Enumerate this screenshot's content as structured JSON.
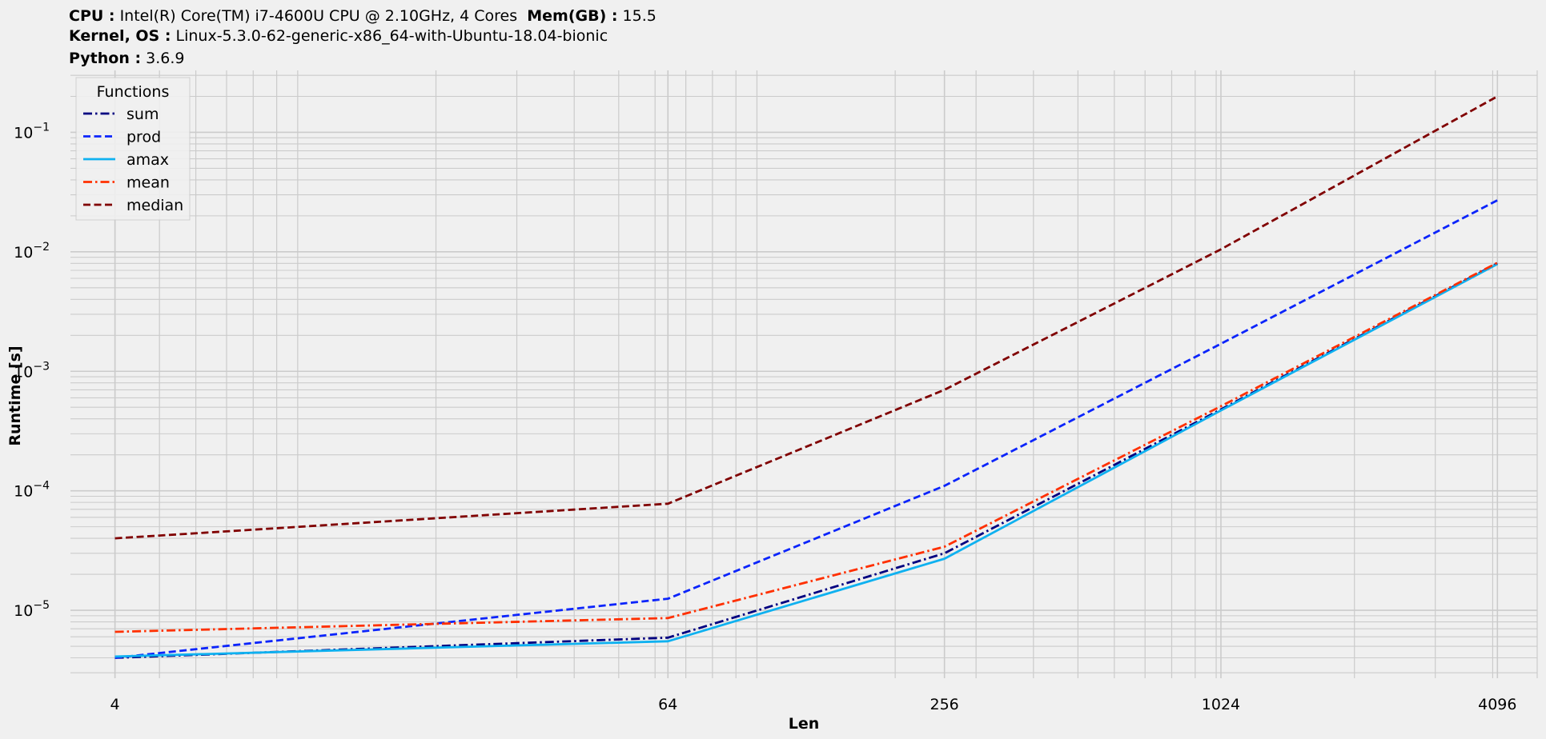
{
  "header": {
    "cpu_label": "CPU :",
    "cpu_value": "Intel(R) Core(TM) i7-4600U CPU @ 2.10GHz, 4 Cores",
    "mem_label": "Mem(GB) :",
    "mem_value": "15.5",
    "kernel_label": "Kernel, OS :",
    "kernel_value": "Linux-5.3.0-62-generic-x86_64-with-Ubuntu-18.04-bionic",
    "python_label": "Python :",
    "python_value": "3.6.9"
  },
  "chart_data": {
    "type": "line",
    "xlabel": "Len",
    "ylabel": "Runtime [s]",
    "xscale": "log2",
    "yscale": "log10",
    "x": [
      4,
      64,
      256,
      1024,
      4096
    ],
    "xticks": [
      "4",
      "64",
      "256",
      "1024",
      "4096"
    ],
    "yticks": [
      "10^-5",
      "10^-4",
      "10^-3",
      "10^-2",
      "10^-1"
    ],
    "xlim": [
      3.2,
      5000
    ],
    "ylim": [
      2.7e-06,
      0.33
    ],
    "grid": true,
    "legend": {
      "title": "Functions",
      "position": "top-left"
    },
    "series": [
      {
        "name": "sum",
        "color": "#000080",
        "dash": "dashdot",
        "values": [
          4e-06,
          5.9e-06,
          3e-05,
          0.00048,
          0.008
        ]
      },
      {
        "name": "prod",
        "color": "#0b24fb",
        "dash": "dashed",
        "values": [
          4e-06,
          1.25e-05,
          0.00011,
          0.0017,
          0.027
        ]
      },
      {
        "name": "amax",
        "color": "#0fb1f0",
        "dash": "solid",
        "values": [
          4.1e-06,
          5.5e-06,
          2.7e-05,
          0.00047,
          0.0079
        ]
      },
      {
        "name": "mean",
        "color": "#ff3000",
        "dash": "dashdot",
        "values": [
          6.6e-06,
          8.6e-06,
          3.4e-05,
          0.00051,
          0.0081
        ]
      },
      {
        "name": "median",
        "color": "#800000",
        "dash": "dashed",
        "values": [
          4e-05,
          7.8e-05,
          0.0007,
          0.0105,
          0.2
        ]
      }
    ]
  }
}
